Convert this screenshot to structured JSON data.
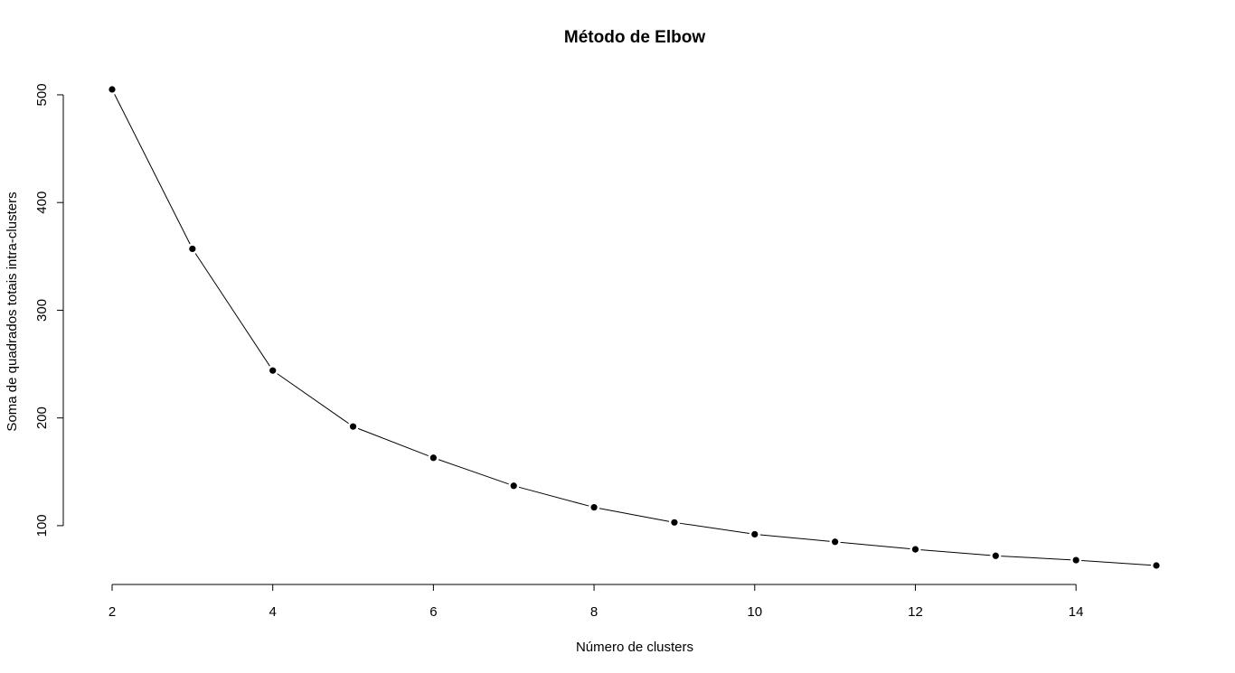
{
  "chart_data": {
    "type": "line",
    "title": "Método de Elbow",
    "xlabel": "Número de clusters",
    "ylabel": "Soma de quadrados totais intra-clusters",
    "x": [
      2,
      3,
      4,
      5,
      6,
      7,
      8,
      9,
      10,
      11,
      12,
      13,
      14,
      15
    ],
    "series": [
      {
        "values": [
          505,
          357,
          244,
          192,
          163,
          137,
          117,
          103,
          92,
          85,
          78,
          72,
          68,
          63
        ]
      }
    ],
    "xticks": [
      2,
      4,
      6,
      8,
      10,
      12,
      14
    ],
    "yticks": [
      100,
      200,
      300,
      400,
      500
    ],
    "xlim": [
      2,
      15
    ],
    "ylim": [
      63,
      505
    ],
    "grid": false,
    "markers": "filled-circle",
    "colors": {
      "line": "#000000",
      "marker": "#000000",
      "background": "#ffffff"
    }
  }
}
